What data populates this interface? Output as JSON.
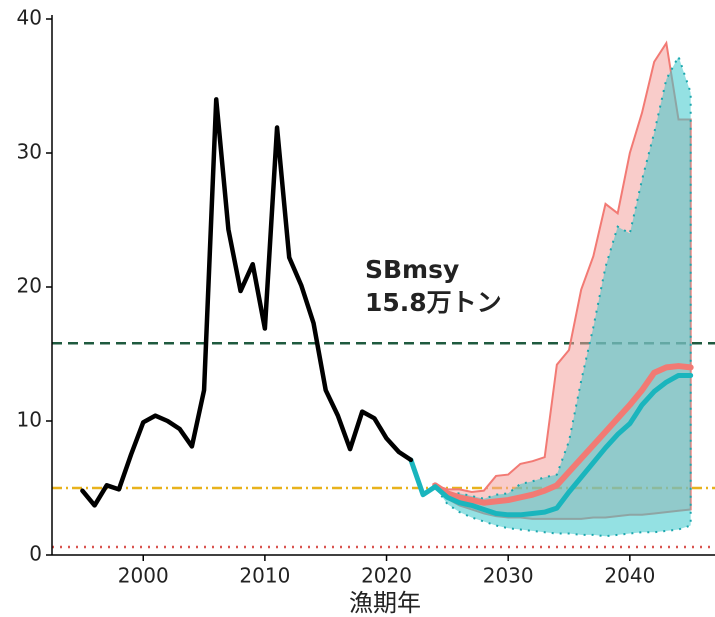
{
  "chart_data": {
    "type": "line",
    "xlabel": "漁期年",
    "xlim": [
      1992.5,
      2047
    ],
    "xticks": [
      2000,
      2010,
      2020,
      2030,
      2040
    ],
    "ylim": [
      0,
      40
    ],
    "yticks": [
      0,
      10,
      20,
      30,
      40
    ],
    "annotations": [
      "SBmsy",
      "15.8万トン"
    ],
    "reference_lines": [
      {
        "value": 15.8,
        "color": "#1f5a3f",
        "style": "dashed"
      },
      {
        "value": 5.0,
        "color": "#e8b21c",
        "style": "dashdot"
      },
      {
        "value": 0.6,
        "color": "#d9534f",
        "style": "dotted"
      }
    ],
    "bands": [
      {
        "color": "#f27a74",
        "fill": "#f4a29e",
        "style": "solid",
        "x": [
          2024,
          2025,
          2026,
          2027,
          2028,
          2029,
          2030,
          2031,
          2032,
          2033,
          2034,
          2035,
          2036,
          2037,
          2038,
          2039,
          2040,
          2041,
          2042,
          2043,
          2044,
          2045
        ],
        "upper": [
          5.2,
          4.9,
          4.9,
          4.7,
          4.8,
          5.9,
          6.0,
          6.8,
          7.0,
          7.3,
          14.2,
          15.3,
          19.8,
          22.3,
          26.2,
          25.5,
          30,
          33,
          36.8,
          38.2,
          32.5,
          32.5
        ],
        "lower": [
          5.2,
          4.2,
          3.7,
          3.4,
          3.1,
          2.9,
          2.8,
          2.8,
          2.7,
          2.7,
          2.7,
          2.7,
          2.7,
          2.8,
          2.8,
          2.9,
          3.0,
          3.0,
          3.1,
          3.2,
          3.3,
          3.4
        ]
      },
      {
        "color": "#1aa6ad",
        "fill": "#3cc8cc",
        "style": "dotted",
        "x": [
          2024,
          2025,
          2026,
          2027,
          2028,
          2029,
          2030,
          2031,
          2032,
          2033,
          2034,
          2035,
          2036,
          2037,
          2038,
          2039,
          2040,
          2041,
          2042,
          2043,
          2044,
          2045
        ],
        "upper": [
          5.1,
          4.6,
          4.6,
          4.4,
          4.2,
          4.5,
          4.6,
          5.3,
          5.5,
          5.8,
          6.0,
          8.5,
          13.0,
          17.0,
          21.5,
          24.5,
          24.0,
          28.0,
          31.5,
          35.5,
          37.2,
          34.5
        ],
        "lower": [
          5.1,
          3.8,
          3.2,
          2.8,
          2.5,
          2.2,
          2.0,
          1.9,
          1.8,
          1.7,
          1.6,
          1.6,
          1.5,
          1.5,
          1.4,
          1.5,
          1.6,
          1.7,
          1.7,
          1.8,
          1.9,
          2.2
        ]
      }
    ],
    "series": [
      {
        "color": "#f27a74",
        "width": 6,
        "x": [
          2024,
          2025,
          2026,
          2027,
          2028,
          2029,
          2030,
          2031,
          2032,
          2033,
          2034,
          2035,
          2036,
          2037,
          2038,
          2039,
          2040,
          2041,
          2042,
          2043,
          2044,
          2045
        ],
        "values": [
          5.2,
          4.6,
          4.3,
          4.1,
          3.9,
          4.0,
          4.1,
          4.3,
          4.5,
          4.8,
          5.2,
          6.2,
          7.2,
          8.2,
          9.2,
          10.2,
          11.2,
          12.3,
          13.6,
          14.0,
          14.1,
          14.0
        ]
      },
      {
        "color": "#1ab5bd",
        "width": 5,
        "x": [
          2022,
          2023,
          2024,
          2025,
          2026,
          2027,
          2028,
          2029,
          2030,
          2031,
          2032,
          2033,
          2034,
          2035,
          2036,
          2037,
          2038,
          2039,
          2040,
          2041,
          2042,
          2043,
          2044,
          2045
        ],
        "values": [
          7.1,
          4.5,
          5.1,
          4.3,
          3.9,
          3.7,
          3.4,
          3.1,
          3.0,
          3.0,
          3.1,
          3.2,
          3.5,
          4.7,
          5.8,
          6.9,
          8.0,
          9.0,
          9.8,
          11.2,
          12.2,
          12.9,
          13.4,
          13.4
        ]
      },
      {
        "color": "#000000",
        "width": 4.5,
        "x": [
          1995,
          1996,
          1997,
          1998,
          1999,
          2000,
          2001,
          2002,
          2003,
          2004,
          2005,
          2006,
          2007,
          2008,
          2009,
          2010,
          2011,
          2012,
          2013,
          2014,
          2015,
          2016,
          2017,
          2018,
          2019,
          2020,
          2021,
          2022
        ],
        "values": [
          4.8,
          3.7,
          5.2,
          4.9,
          7.5,
          9.9,
          10.4,
          10.0,
          9.4,
          8.1,
          12.3,
          34.0,
          24.3,
          19.7,
          21.7,
          16.9,
          31.9,
          22.2,
          20.1,
          17.3,
          12.3,
          10.4,
          7.9,
          10.7,
          10.2,
          8.7,
          7.7,
          7.1
        ]
      }
    ]
  }
}
